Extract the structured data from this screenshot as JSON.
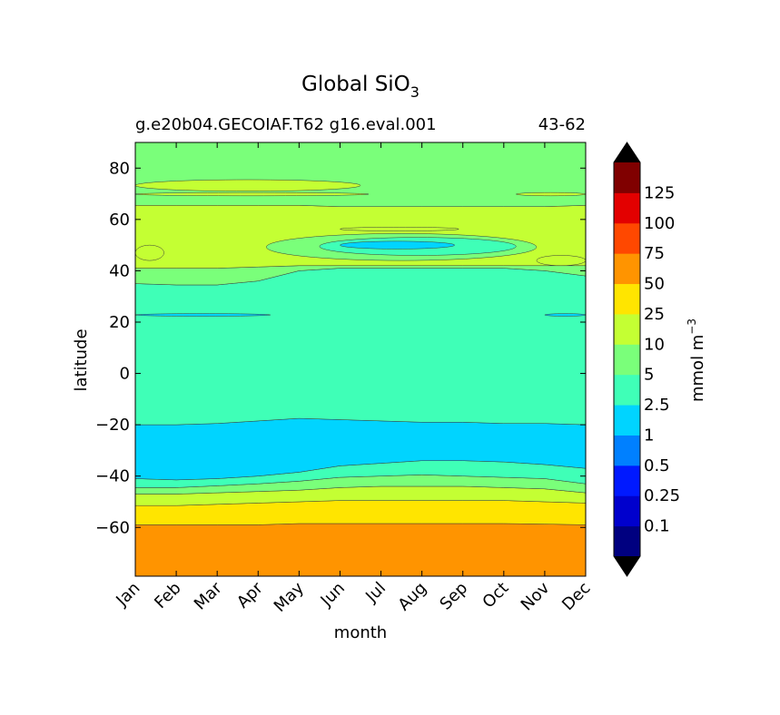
{
  "chart_data": {
    "type": "contourf",
    "title": "Global SiO",
    "title_subscript": "3",
    "case_label": "g.e20b04.GECOIAF.T62 g16.eval.001",
    "years_label": "43-62",
    "xlabel": "month",
    "ylabel": "latitude",
    "x_ticks": [
      "Jan",
      "Feb",
      "Mar",
      "Apr",
      "May",
      "Jun",
      "Jul",
      "Aug",
      "Sep",
      "Oct",
      "Nov",
      "Dec"
    ],
    "x_range": [
      0,
      11
    ],
    "y_range": [
      -79,
      90
    ],
    "y_ticks": [
      80,
      60,
      40,
      20,
      0,
      -20,
      -40,
      -60
    ],
    "y_tick_labels": [
      "80",
      "60",
      "40",
      "20",
      "0",
      "−20",
      "−40",
      "−60"
    ],
    "colorbar": {
      "label": "mmol m",
      "label_superscript": "−3",
      "levels": [
        0.1,
        0.25,
        0.5,
        1,
        2.5,
        5,
        10,
        25,
        50,
        75,
        100,
        125
      ],
      "level_labels": [
        "0.1",
        "0.25",
        "0.5",
        "1",
        "2.5",
        "5",
        "10",
        "25",
        "50",
        "75",
        "100",
        "125"
      ],
      "colors": [
        "#000080",
        "#0000cd",
        "#0019ff",
        "#0080ff",
        "#00d4ff",
        "#3fffb7",
        "#7aff7a",
        "#c4ff33",
        "#ffe500",
        "#ff9400",
        "#ff4800",
        "#e30000",
        "#800000"
      ],
      "under_color": "#000000",
      "over_color": "#000000"
    },
    "bands": [
      {
        "level": "50-75",
        "color": "#ff9400",
        "lower": [
          -79,
          -79,
          -79,
          -79,
          -79,
          -79,
          -79,
          -79,
          -79,
          -79,
          -79,
          -79
        ],
        "upper": [
          -59,
          -59,
          -59,
          -59,
          -58.5,
          -58.5,
          -58.5,
          -58.5,
          -58.5,
          -58.5,
          -58.7,
          -59
        ]
      },
      {
        "level": "25-50",
        "color": "#ffe500",
        "lower": [
          -59,
          -59,
          -59,
          -59,
          -58.5,
          -58.5,
          -58.5,
          -58.5,
          -58.5,
          -58.5,
          -58.7,
          -59
        ],
        "upper": [
          -51.5,
          -51.5,
          -51,
          -50.5,
          -50,
          -49.5,
          -49.5,
          -49.5,
          -49.5,
          -49.5,
          -50,
          -50.5
        ]
      },
      {
        "level": "10-25",
        "color": "#c4ff33",
        "lower": [
          -51.5,
          -51.5,
          -51,
          -50.5,
          -50,
          -49.5,
          -49.5,
          -49.5,
          -49.5,
          -49.5,
          -50,
          -50.5
        ],
        "upper": [
          -47,
          -47,
          -46.5,
          -46,
          -45.5,
          -44.5,
          -44,
          -44,
          -44,
          -44.5,
          -45,
          -46.5
        ]
      },
      {
        "level": "5-10",
        "color": "#7aff7a",
        "lower": [
          -47,
          -47,
          -46.5,
          -46,
          -45.5,
          -44.5,
          -44,
          -44,
          -44,
          -44.5,
          -45,
          -46.5
        ],
        "upper": [
          -44.5,
          -44.5,
          -43.8,
          -43,
          -42,
          -40.5,
          -40,
          -39.5,
          -40,
          -40.5,
          -41,
          -43
        ]
      },
      {
        "level": "2.5-5",
        "color": "#3fffb7",
        "lower": [
          -44.5,
          -44.5,
          -43.8,
          -43,
          -42,
          -40.5,
          -40,
          -39.5,
          -40,
          -40.5,
          -41,
          -43
        ],
        "upper": [
          -41,
          -41.5,
          -41,
          -40,
          -38.5,
          -36,
          -35,
          -34,
          -34,
          -34.5,
          -35.5,
          -37
        ]
      },
      {
        "level": "1-2.5",
        "color": "#00d4ff",
        "lower": [
          -41,
          -41.5,
          -41,
          -40,
          -38.5,
          -36,
          -35,
          -34,
          -34,
          -34.5,
          -35.5,
          -37
        ],
        "upper": [
          -20,
          -20,
          -19.5,
          -18.5,
          -17.5,
          -18,
          -18.5,
          -19,
          -19,
          -19.5,
          -19.5,
          -20
        ]
      },
      {
        "level": "2.5-5",
        "color": "#3fffb7",
        "lower": [
          -20,
          -20,
          -19.5,
          -18.5,
          -17.5,
          -18,
          -18.5,
          -19,
          -19,
          -19.5,
          -19.5,
          -20
        ],
        "upper": [
          35,
          34.5,
          34.5,
          36,
          40,
          41,
          41,
          41,
          41,
          41,
          40,
          38
        ]
      },
      {
        "level": "5-10",
        "color": "#7aff7a",
        "lower": [
          35,
          34.5,
          34.5,
          36,
          40,
          41,
          41,
          41,
          41,
          41,
          40,
          38
        ],
        "upper": [
          41,
          41,
          41,
          41.5,
          42,
          42,
          42,
          42,
          42,
          42,
          42,
          42
        ]
      },
      {
        "level": "10-25",
        "color": "#c4ff33",
        "lower": [
          41,
          41,
          41,
          41.5,
          42,
          42,
          42,
          42,
          42,
          42,
          42,
          42
        ],
        "upper": [
          65.5,
          65.5,
          65.5,
          65.5,
          65.5,
          65,
          65,
          65,
          65,
          65,
          65,
          65.5
        ]
      },
      {
        "level": "5-10",
        "color": "#7aff7a",
        "lower": [
          65.5,
          65.5,
          65.5,
          65.5,
          65.5,
          65,
          65,
          65,
          65,
          65,
          65,
          65.5
        ],
        "upper": [
          90,
          90,
          90,
          90,
          90,
          90,
          90,
          90,
          90,
          90,
          90,
          90
        ]
      }
    ],
    "patches": [
      {
        "level": "5-10",
        "color": "#7aff7a",
        "x_start": 3.2,
        "x_end": 9.8,
        "y_min": 44,
        "y_max": 54.5
      },
      {
        "level": "2.5-5",
        "color": "#3fffb7",
        "x_start": 4.5,
        "x_end": 9.3,
        "y_min": 46,
        "y_max": 53
      },
      {
        "level": "1-2.5",
        "color": "#00d4ff",
        "x_start": 5.0,
        "x_end": 7.8,
        "y_min": 48.5,
        "y_max": 51.5
      },
      {
        "level": "10-25",
        "color": "#c4ff33",
        "x_start": 5.0,
        "x_end": 7.9,
        "y_min": 55.5,
        "y_max": 57
      },
      {
        "level": "10-25",
        "color": "#c4ff33",
        "x_start": 0.0,
        "x_end": 5.5,
        "y_min": 71,
        "y_max": 75.5
      },
      {
        "level": "10-25",
        "color": "#c4ff33",
        "x_start": 0.0,
        "x_end": 5.7,
        "y_min": 69.2,
        "y_max": 70.5
      },
      {
        "level": "10-25",
        "color": "#c4ff33",
        "x_start": 9.3,
        "x_end": 11.0,
        "y_min": 69.2,
        "y_max": 70.5
      },
      {
        "level": "10-25",
        "color": "#c4ff33",
        "x_start": 0.0,
        "x_end": 0.7,
        "y_min": 44,
        "y_max": 50
      },
      {
        "level": "10-25",
        "color": "#c4ff33",
        "x_start": 9.8,
        "x_end": 11.0,
        "y_min": 42,
        "y_max": 46
      },
      {
        "level": "1-2.5",
        "color": "#00d4ff",
        "x_start": 0.0,
        "x_end": 3.3,
        "y_min": 22.3,
        "y_max": 23.3
      },
      {
        "level": "1-2.5",
        "color": "#00d4ff",
        "x_start": 10.0,
        "x_end": 11.0,
        "y_min": 22.3,
        "y_max": 23.3
      }
    ]
  }
}
